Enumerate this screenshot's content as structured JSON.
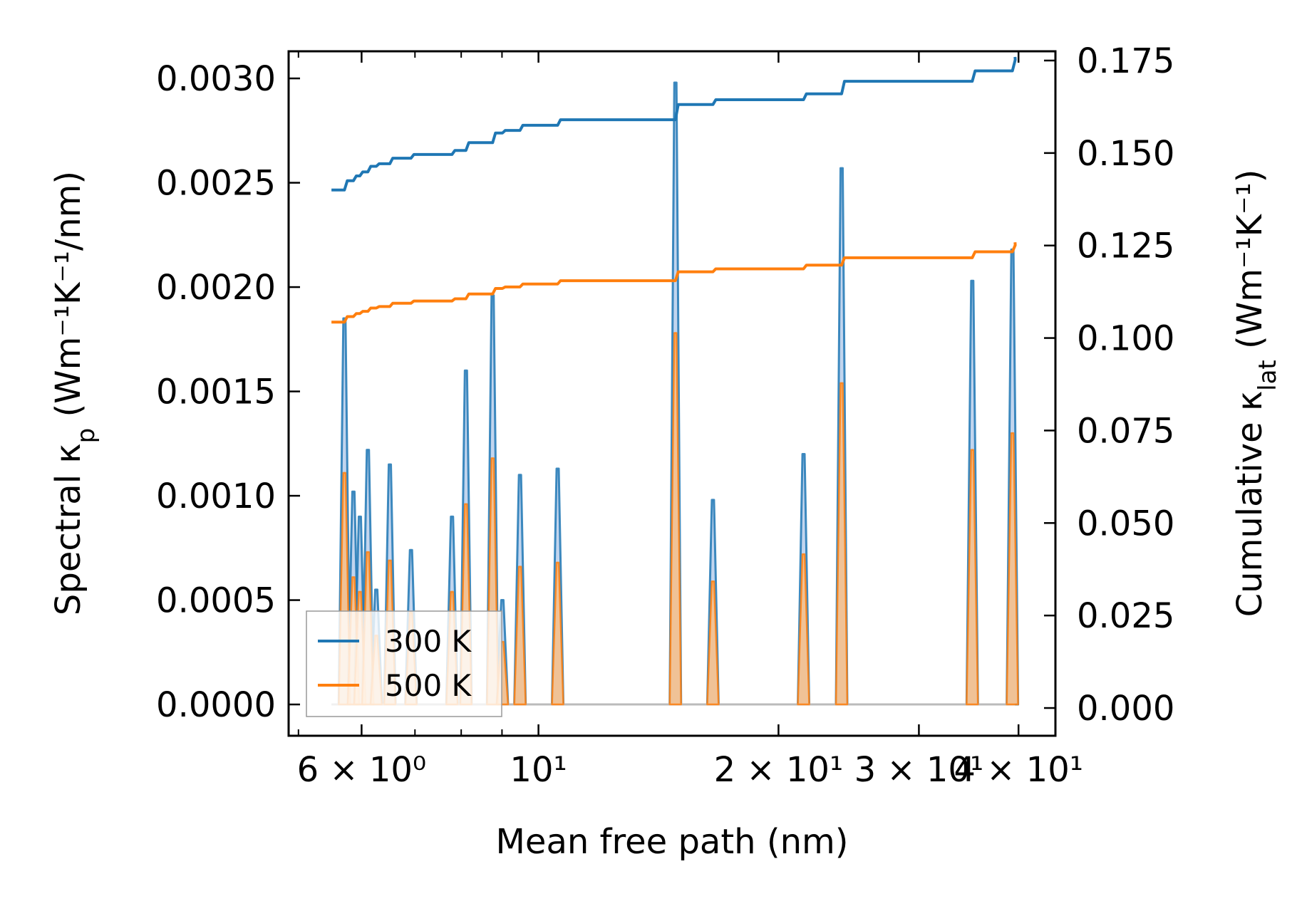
{
  "chart_data": {
    "type": "line",
    "xscale": "log",
    "xlabel": "Mean free path (nm)",
    "ylabel_left": {
      "main": "Spectral κ",
      "sub": "p",
      "unit": " (Wm⁻¹K⁻¹/nm)"
    },
    "ylabel_right": {
      "main": "Cumulative κ",
      "sub": "lat",
      "unit": " (Wm⁻¹K⁻¹)"
    },
    "xlim": [
      4.86,
      44.5
    ],
    "ylim_left": [
      -0.00015,
      0.00313
    ],
    "ylim_right": [
      -0.0075,
      0.1775
    ],
    "x_ticks": [
      {
        "value": 6,
        "label": "6 × 10⁰"
      },
      {
        "value": 10,
        "label": "10¹"
      },
      {
        "value": 20,
        "label": "2 × 10¹"
      },
      {
        "value": 30,
        "label": "3 × 10¹"
      },
      {
        "value": 40,
        "label": "4 × 10¹"
      }
    ],
    "x_minor_ticks": [
      5,
      7,
      8,
      9
    ],
    "y_left_ticks": [
      {
        "value": 0.0,
        "label": "0.0000"
      },
      {
        "value": 0.0005,
        "label": "0.0005"
      },
      {
        "value": 0.001,
        "label": "0.0010"
      },
      {
        "value": 0.0015,
        "label": "0.0015"
      },
      {
        "value": 0.002,
        "label": "0.0020"
      },
      {
        "value": 0.0025,
        "label": "0.0025"
      },
      {
        "value": 0.003,
        "label": "0.0030"
      }
    ],
    "y_right_ticks": [
      {
        "value": 0.0,
        "label": "0.000"
      },
      {
        "value": 0.025,
        "label": "0.025"
      },
      {
        "value": 0.05,
        "label": "0.050"
      },
      {
        "value": 0.075,
        "label": "0.075"
      },
      {
        "value": 0.1,
        "label": "0.100"
      },
      {
        "value": 0.125,
        "label": "0.125"
      },
      {
        "value": 0.15,
        "label": "0.150"
      },
      {
        "value": 0.175,
        "label": "0.175"
      }
    ],
    "legend": {
      "location": "lower-left",
      "entries": [
        "300 K",
        "500 K"
      ]
    },
    "colors": {
      "s300": "#1f77b4",
      "s500": "#ff7f0e",
      "fill300": "#aec7e8",
      "fill500": "#ffbb78"
    },
    "spectral": [
      {
        "name": "300 K",
        "peaks": [
          [
            5.71,
            0.00185
          ],
          [
            5.86,
            0.00102
          ],
          [
            5.97,
            0.0009
          ],
          [
            6.11,
            0.00122
          ],
          [
            6.26,
            0.00055
          ],
          [
            6.51,
            0.00115
          ],
          [
            6.92,
            0.00074
          ],
          [
            7.79,
            0.0009
          ],
          [
            8.11,
            0.0016
          ],
          [
            8.76,
            0.00196
          ],
          [
            9.01,
            0.0005
          ],
          [
            9.48,
            0.0011
          ],
          [
            10.57,
            0.00113
          ],
          [
            14.85,
            0.00298
          ],
          [
            16.55,
            0.00098
          ],
          [
            21.5,
            0.0012
          ],
          [
            24.0,
            0.00257
          ],
          [
            35.0,
            0.00203
          ],
          [
            39.3,
            0.00218
          ]
        ]
      },
      {
        "name": "500 K",
        "peaks": [
          [
            5.71,
            0.00111
          ],
          [
            5.86,
            0.00061
          ],
          [
            5.97,
            0.00054
          ],
          [
            6.11,
            0.00073
          ],
          [
            6.26,
            0.00033
          ],
          [
            6.51,
            0.00069
          ],
          [
            6.92,
            0.00044
          ],
          [
            7.79,
            0.00054
          ],
          [
            8.11,
            0.00096
          ],
          [
            8.76,
            0.00118
          ],
          [
            9.01,
            0.0003
          ],
          [
            9.48,
            0.00066
          ],
          [
            10.57,
            0.00068
          ],
          [
            14.85,
            0.00178
          ],
          [
            16.55,
            0.00059
          ],
          [
            21.5,
            0.00072
          ],
          [
            24.0,
            0.00154
          ],
          [
            35.0,
            0.00122
          ],
          [
            39.3,
            0.0013
          ]
        ]
      }
    ],
    "cumulative": [
      {
        "name": "300 K",
        "steps": [
          [
            5.5,
            0.14
          ],
          [
            5.71,
            0.1425
          ],
          [
            5.86,
            0.1438
          ],
          [
            5.97,
            0.1449
          ],
          [
            6.11,
            0.1464
          ],
          [
            6.26,
            0.1471
          ],
          [
            6.51,
            0.1486
          ],
          [
            6.92,
            0.1496
          ],
          [
            7.79,
            0.1507
          ],
          [
            8.11,
            0.1528
          ],
          [
            8.76,
            0.1554
          ],
          [
            9.01,
            0.1561
          ],
          [
            9.48,
            0.1575
          ],
          [
            10.57,
            0.159
          ],
          [
            14.85,
            0.1631
          ],
          [
            16.55,
            0.1644
          ],
          [
            21.5,
            0.166
          ],
          [
            24.0,
            0.1694
          ],
          [
            35.0,
            0.1722
          ],
          [
            39.3,
            0.1752
          ]
        ]
      },
      {
        "name": "500 K",
        "steps": [
          [
            5.5,
            0.1043
          ],
          [
            5.71,
            0.1058
          ],
          [
            5.86,
            0.1066
          ],
          [
            5.97,
            0.1072
          ],
          [
            6.11,
            0.1081
          ],
          [
            6.26,
            0.1085
          ],
          [
            6.51,
            0.1094
          ],
          [
            6.92,
            0.11
          ],
          [
            7.79,
            0.1106
          ],
          [
            8.11,
            0.1119
          ],
          [
            8.76,
            0.1134
          ],
          [
            9.01,
            0.1138
          ],
          [
            9.48,
            0.1146
          ],
          [
            10.57,
            0.1155
          ],
          [
            14.85,
            0.1179
          ],
          [
            16.55,
            0.1187
          ],
          [
            21.5,
            0.1197
          ],
          [
            24.0,
            0.1217
          ],
          [
            35.0,
            0.1233
          ],
          [
            39.3,
            0.1251
          ]
        ]
      }
    ]
  }
}
